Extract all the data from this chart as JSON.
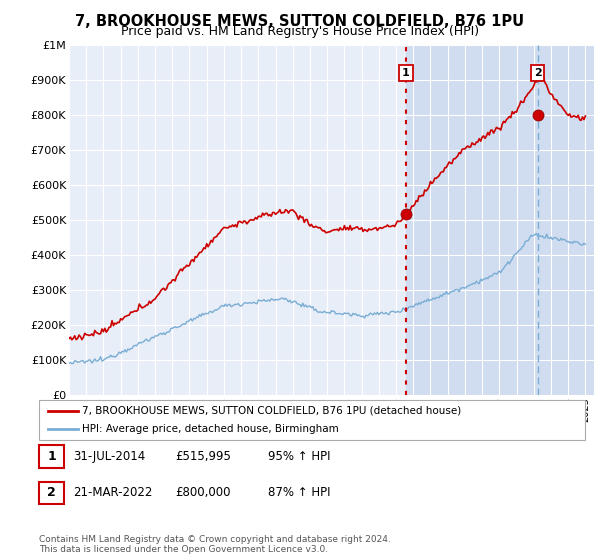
{
  "title": "7, BROOKHOUSE MEWS, SUTTON COLDFIELD, B76 1PU",
  "subtitle": "Price paid vs. HM Land Registry's House Price Index (HPI)",
  "title_fontsize": 10.5,
  "subtitle_fontsize": 9,
  "ylim": [
    0,
    1000000
  ],
  "yticks": [
    0,
    100000,
    200000,
    300000,
    400000,
    500000,
    600000,
    700000,
    800000,
    900000,
    1000000
  ],
  "ytick_labels": [
    "£0",
    "£100K",
    "£200K",
    "£300K",
    "£400K",
    "£500K",
    "£600K",
    "£700K",
    "£800K",
    "£900K",
    "£1M"
  ],
  "sale1_date": 2014.58,
  "sale1_price": 515995,
  "sale1_label": "1",
  "sale2_date": 2022.22,
  "sale2_price": 800000,
  "sale2_label": "2",
  "hpi_color": "#7aadd4",
  "house_color": "#cc0000",
  "marker_color": "#cc0000",
  "vline1_color": "#cc0000",
  "vline2_color": "#7aadd4",
  "legend_house_label": "7, BROOKHOUSE MEWS, SUTTON COLDFIELD, B76 1PU (detached house)",
  "legend_hpi_label": "HPI: Average price, detached house, Birmingham",
  "table_row1": [
    "1",
    "31-JUL-2014",
    "£515,995",
    "95% ↑ HPI"
  ],
  "table_row2": [
    "2",
    "21-MAR-2022",
    "£800,000",
    "87% ↑ HPI"
  ],
  "footer": "Contains HM Land Registry data © Crown copyright and database right 2024.\nThis data is licensed under the Open Government Licence v3.0.",
  "plot_bg": "#e8eef8",
  "highlight_bg": "#d0ddf0",
  "white": "#ffffff"
}
